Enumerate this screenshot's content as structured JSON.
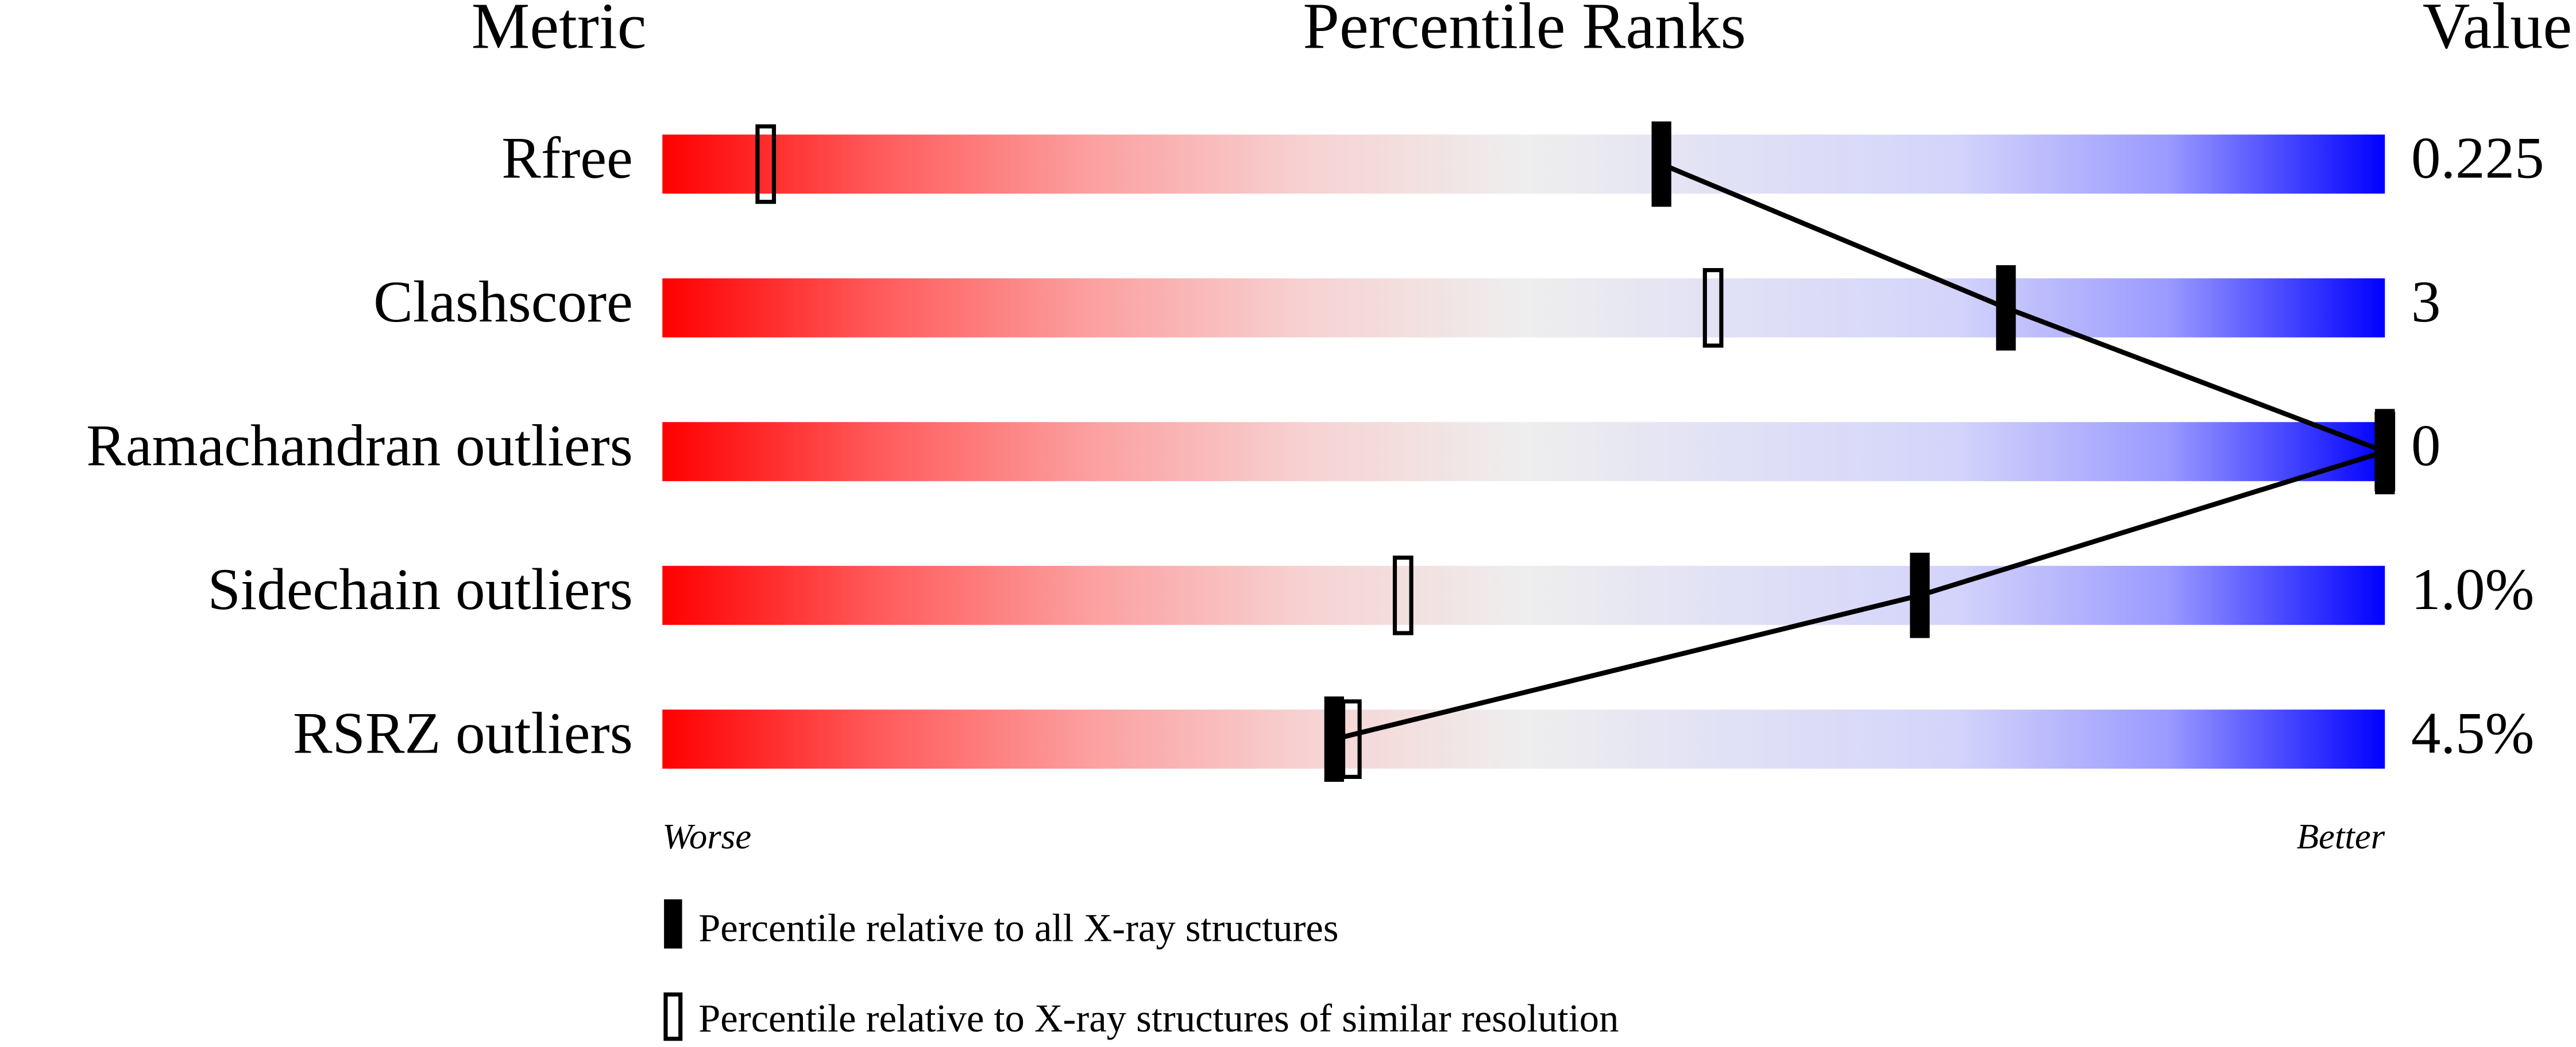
{
  "chart_data": {
    "type": "percentile-slider",
    "headers": [
      "Metric",
      "Percentile Ranks",
      "Value"
    ],
    "categories": [
      "Rfree",
      "Clashscore",
      "Ramachandran outliers",
      "Sidechain outliers",
      "RSRZ outliers"
    ],
    "metric_values": [
      "0.225",
      "3",
      "0",
      "1.0%",
      "4.5%"
    ],
    "series": [
      {
        "name": "Percentile relative to all X-ray structures",
        "color": "#000000",
        "values": [
          58,
          78,
          100,
          73,
          39
        ]
      },
      {
        "name": "Percentile relative to X-ray structures of similar resolution",
        "color": "#000000",
        "values": [
          6,
          61,
          100,
          43,
          40
        ]
      }
    ],
    "xlim": [
      0,
      100
    ],
    "x_ends": [
      "Worse",
      "Better"
    ],
    "gradient": [
      "#ff0000",
      "#ff5a5a",
      "#fca0a0",
      "#f7d2d2",
      "#eeeeee",
      "#e0e0f6",
      "#d4d4fb",
      "#9999ff",
      "#0000ff"
    ]
  }
}
